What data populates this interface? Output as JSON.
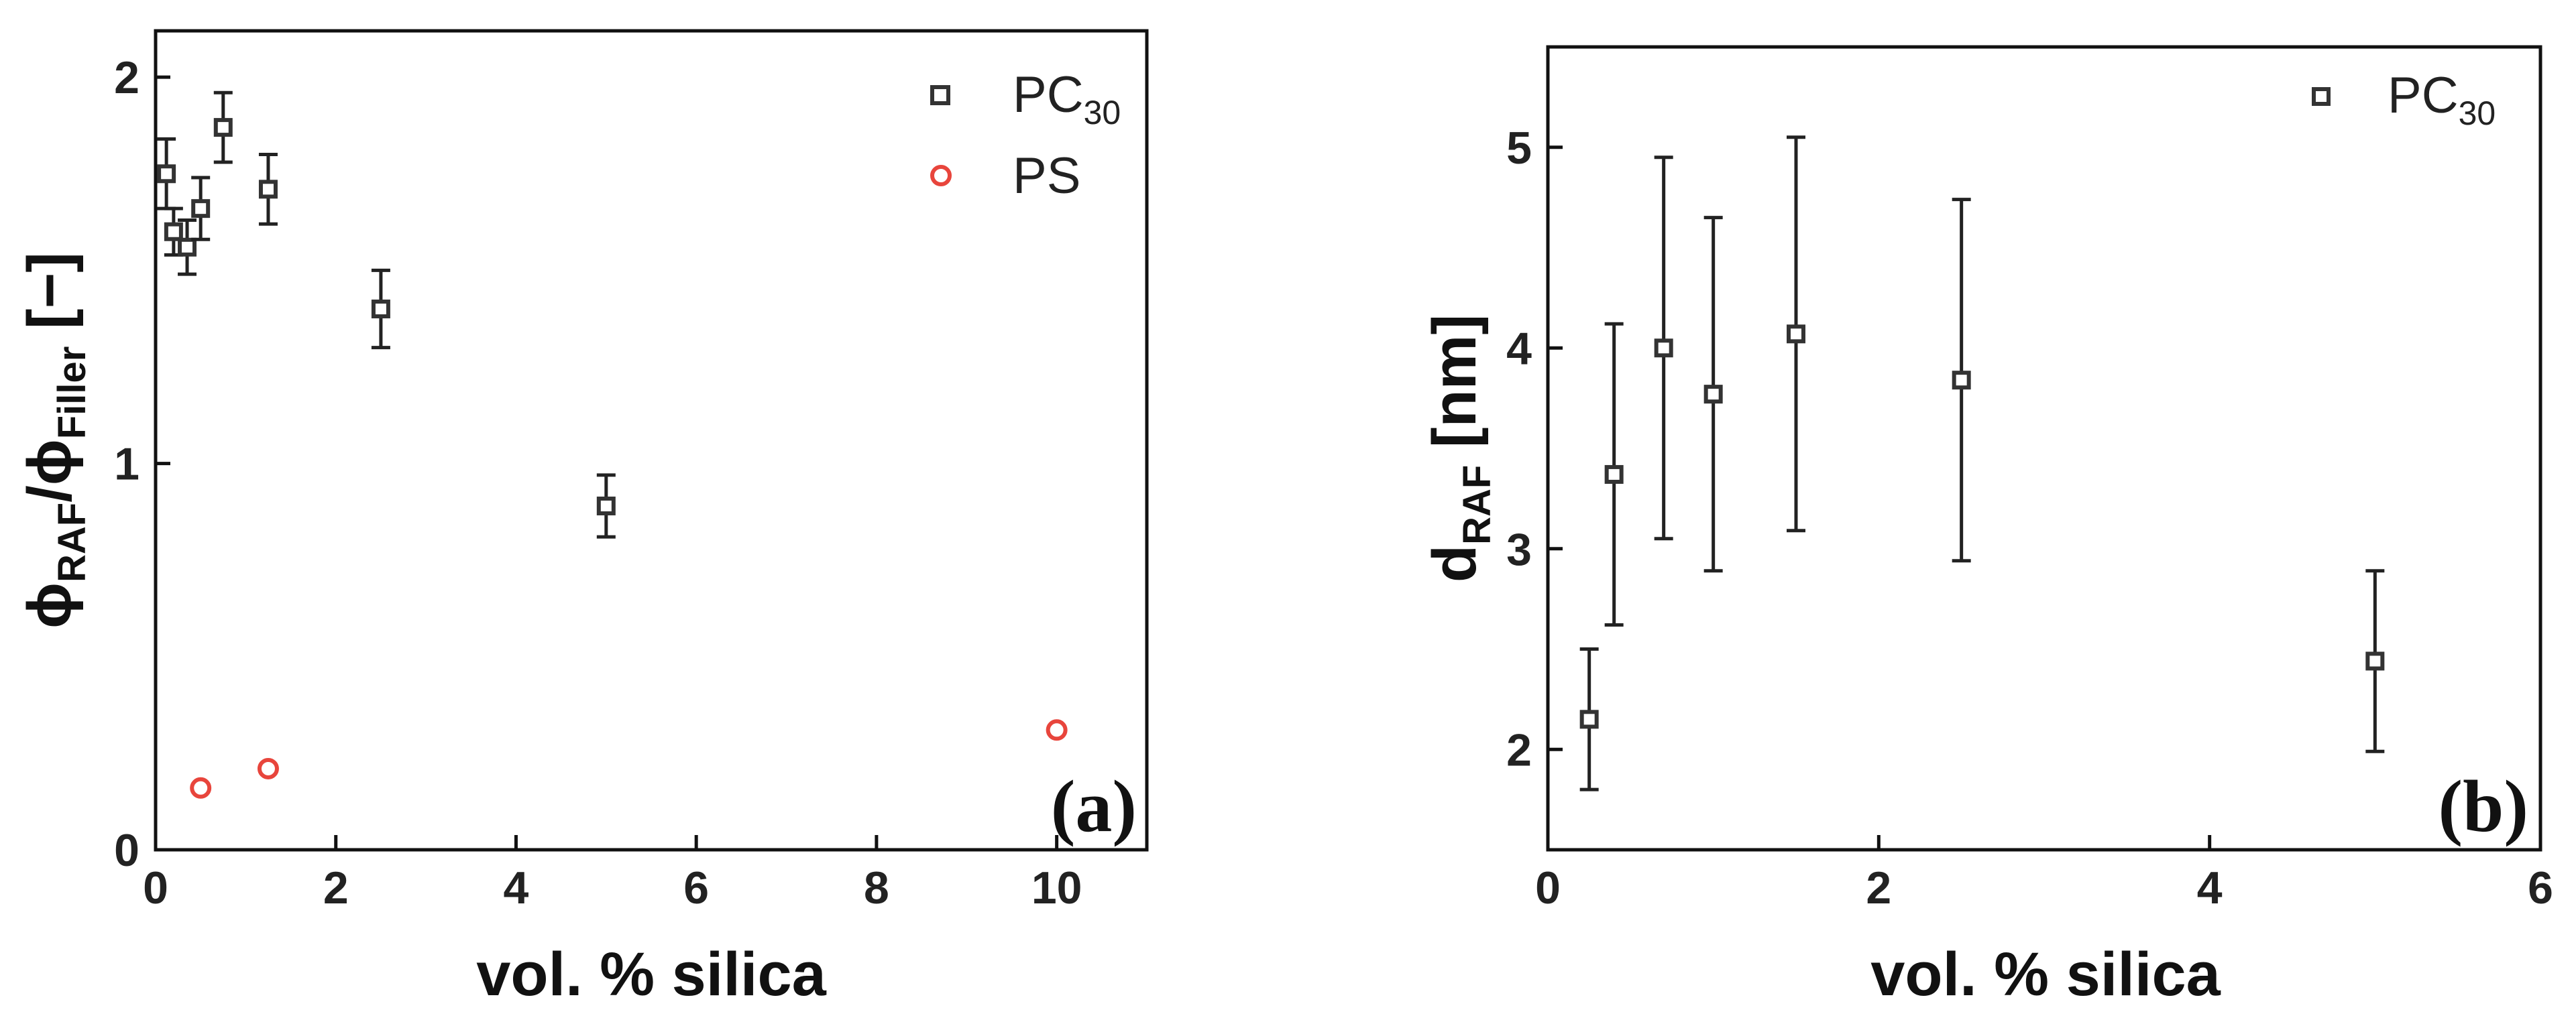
{
  "chart_data": [
    {
      "type": "scatter",
      "panel_label": "(a)",
      "xlabel": "vol. % silica",
      "ylabel": {
        "phi1": "ϕ",
        "sub1": "RAF",
        "slash": "/",
        "phi2": "ϕ",
        "sub2": "Filler",
        "unit": " [−]"
      },
      "xlim": [
        0,
        11
      ],
      "ylim": [
        0,
        2.12
      ],
      "xticks": [
        0,
        2,
        4,
        6,
        8,
        10
      ],
      "yticks": [
        0,
        1,
        2
      ],
      "grid": false,
      "legend_position": "top-right",
      "legend": [
        {
          "name": "PC",
          "sub": "30",
          "marker": "square",
          "color": "#333333"
        },
        {
          "name": "PS",
          "sub": "",
          "marker": "circle",
          "color": "#e8453c"
        }
      ],
      "series": [
        {
          "name": "PC30",
          "marker": "square",
          "color": "#333333",
          "points": [
            {
              "x": 0.12,
              "y": 1.75,
              "err": 0.09
            },
            {
              "x": 0.2,
              "y": 1.6,
              "err": 0.06
            },
            {
              "x": 0.35,
              "y": 1.56,
              "err": 0.07
            },
            {
              "x": 0.5,
              "y": 1.66,
              "err": 0.08
            },
            {
              "x": 0.75,
              "y": 1.87,
              "err": 0.09
            },
            {
              "x": 1.25,
              "y": 1.71,
              "err": 0.09
            },
            {
              "x": 2.5,
              "y": 1.4,
              "err": 0.1
            },
            {
              "x": 5.0,
              "y": 0.89,
              "err": 0.08
            }
          ]
        },
        {
          "name": "PS",
          "marker": "circle",
          "color": "#e8453c",
          "points": [
            {
              "x": 0.5,
              "y": 0.16
            },
            {
              "x": 1.25,
              "y": 0.21
            },
            {
              "x": 10.0,
              "y": 0.31
            }
          ]
        }
      ]
    },
    {
      "type": "scatter",
      "panel_label": "(b)",
      "xlabel": "vol. % silica",
      "ylabel": {
        "main": "d",
        "sub": "RAF",
        "unit": " [nm]"
      },
      "xlim": [
        0,
        6
      ],
      "ylim": [
        1.5,
        5.5
      ],
      "xticks": [
        0,
        2,
        4,
        6
      ],
      "yticks": [
        2,
        3,
        4,
        5
      ],
      "grid": false,
      "legend_position": "top-right",
      "legend": [
        {
          "name": "PC",
          "sub": "30",
          "marker": "square",
          "color": "#333333"
        }
      ],
      "series": [
        {
          "name": "PC30",
          "marker": "square",
          "color": "#333333",
          "points": [
            {
              "x": 0.25,
              "y": 2.15,
              "err": 0.35
            },
            {
              "x": 0.4,
              "y": 3.37,
              "err": 0.75
            },
            {
              "x": 0.7,
              "y": 4.0,
              "err": 0.95
            },
            {
              "x": 1.0,
              "y": 3.77,
              "err": 0.88
            },
            {
              "x": 1.5,
              "y": 4.07,
              "err": 0.98
            },
            {
              "x": 2.5,
              "y": 3.84,
              "err": 0.9
            },
            {
              "x": 5.0,
              "y": 2.44,
              "err": 0.45
            }
          ]
        }
      ]
    }
  ]
}
